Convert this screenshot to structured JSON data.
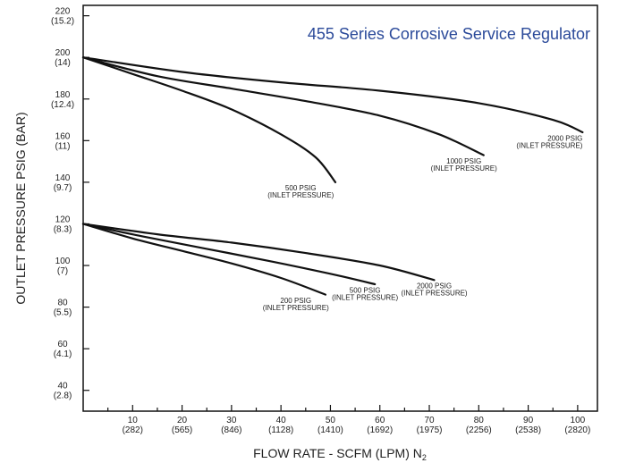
{
  "chart_data": {
    "type": "line",
    "title": "455 Series Corrosive Service Regulator",
    "xlabel": "FLOW RATE - SCFM (LPM) N",
    "xlabel_subscript": "2",
    "ylabel": "OUTLET PRESSURE PSIG (BAR)",
    "xlim": [
      0,
      104
    ],
    "ylim": [
      30,
      225
    ],
    "x_ticks": [
      {
        "value": 10,
        "label": "10",
        "sub": "(282)"
      },
      {
        "value": 20,
        "label": "20",
        "sub": "(565)"
      },
      {
        "value": 30,
        "label": "30",
        "sub": "(846)"
      },
      {
        "value": 40,
        "label": "40",
        "sub": "(1128)"
      },
      {
        "value": 50,
        "label": "50",
        "sub": "(1410)"
      },
      {
        "value": 60,
        "label": "60",
        "sub": "(1692)"
      },
      {
        "value": 70,
        "label": "70",
        "sub": "(1975)"
      },
      {
        "value": 80,
        "label": "80",
        "sub": "(2256)"
      },
      {
        "value": 90,
        "label": "90",
        "sub": "(2538)"
      },
      {
        "value": 100,
        "label": "100",
        "sub": "(2820)"
      }
    ],
    "y_ticks": [
      {
        "value": 40,
        "label": "40",
        "sub": "(2.8)"
      },
      {
        "value": 60,
        "label": "60",
        "sub": "(4.1)"
      },
      {
        "value": 80,
        "label": "80",
        "sub": "(5.5)"
      },
      {
        "value": 100,
        "label": "100",
        "sub": "(7)"
      },
      {
        "value": 120,
        "label": "120",
        "sub": "(8.3)"
      },
      {
        "value": 140,
        "label": "140",
        "sub": "(9.7)"
      },
      {
        "value": 160,
        "label": "160",
        "sub": "(11)"
      },
      {
        "value": 180,
        "label": "180",
        "sub": "(12.4)"
      },
      {
        "value": 200,
        "label": "200",
        "sub": "(14)"
      },
      {
        "value": 220,
        "label": "220",
        "sub": "(15.2)"
      }
    ],
    "series": [
      {
        "label_line1": "2000 PSIG",
        "label_line2": "(INLET PRESSURE)",
        "points": [
          [
            0,
            200
          ],
          [
            20,
            193
          ],
          [
            40,
            188
          ],
          [
            60,
            184
          ],
          [
            80,
            178
          ],
          [
            95,
            170
          ],
          [
            101,
            164
          ]
        ],
        "label_at": [
          101,
          160
        ],
        "label_anchor": "end"
      },
      {
        "label_line1": "1000 PSIG",
        "label_line2": "(INLET PRESSURE)",
        "points": [
          [
            0,
            200
          ],
          [
            15,
            191
          ],
          [
            30,
            185
          ],
          [
            45,
            179
          ],
          [
            60,
            172
          ],
          [
            72,
            163
          ],
          [
            81,
            153
          ]
        ],
        "label_at": [
          77,
          149
        ],
        "label_anchor": "middle"
      },
      {
        "label_line1": "500 PSIG",
        "label_line2": "(INLET PRESSURE)",
        "points": [
          [
            0,
            200
          ],
          [
            10,
            192
          ],
          [
            20,
            184
          ],
          [
            30,
            175
          ],
          [
            40,
            163
          ],
          [
            47,
            152
          ],
          [
            51,
            140
          ]
        ],
        "label_at": [
          44,
          136
        ],
        "label_anchor": "middle"
      },
      {
        "label_line1": "2000 PSIG",
        "label_line2": "(INLET PRESSURE)",
        "points": [
          [
            0,
            120
          ],
          [
            15,
            115
          ],
          [
            30,
            111
          ],
          [
            45,
            106
          ],
          [
            60,
            100
          ],
          [
            71,
            93
          ]
        ],
        "label_at": [
          71,
          89
        ],
        "label_anchor": "middle"
      },
      {
        "label_line1": "500 PSIG",
        "label_line2": "(INLET PRESSURE)",
        "points": [
          [
            0,
            120
          ],
          [
            12,
            114
          ],
          [
            25,
            108
          ],
          [
            38,
            102
          ],
          [
            50,
            96
          ],
          [
            59,
            91
          ]
        ],
        "label_at": [
          57,
          87
        ],
        "label_anchor": "middle"
      },
      {
        "label_line1": "200 PSIG",
        "label_line2": "(INLET PRESSURE)",
        "points": [
          [
            0,
            120
          ],
          [
            10,
            113
          ],
          [
            20,
            107
          ],
          [
            30,
            101
          ],
          [
            40,
            94
          ],
          [
            49,
            86
          ]
        ],
        "label_at": [
          43,
          82
        ],
        "label_anchor": "middle"
      }
    ]
  }
}
